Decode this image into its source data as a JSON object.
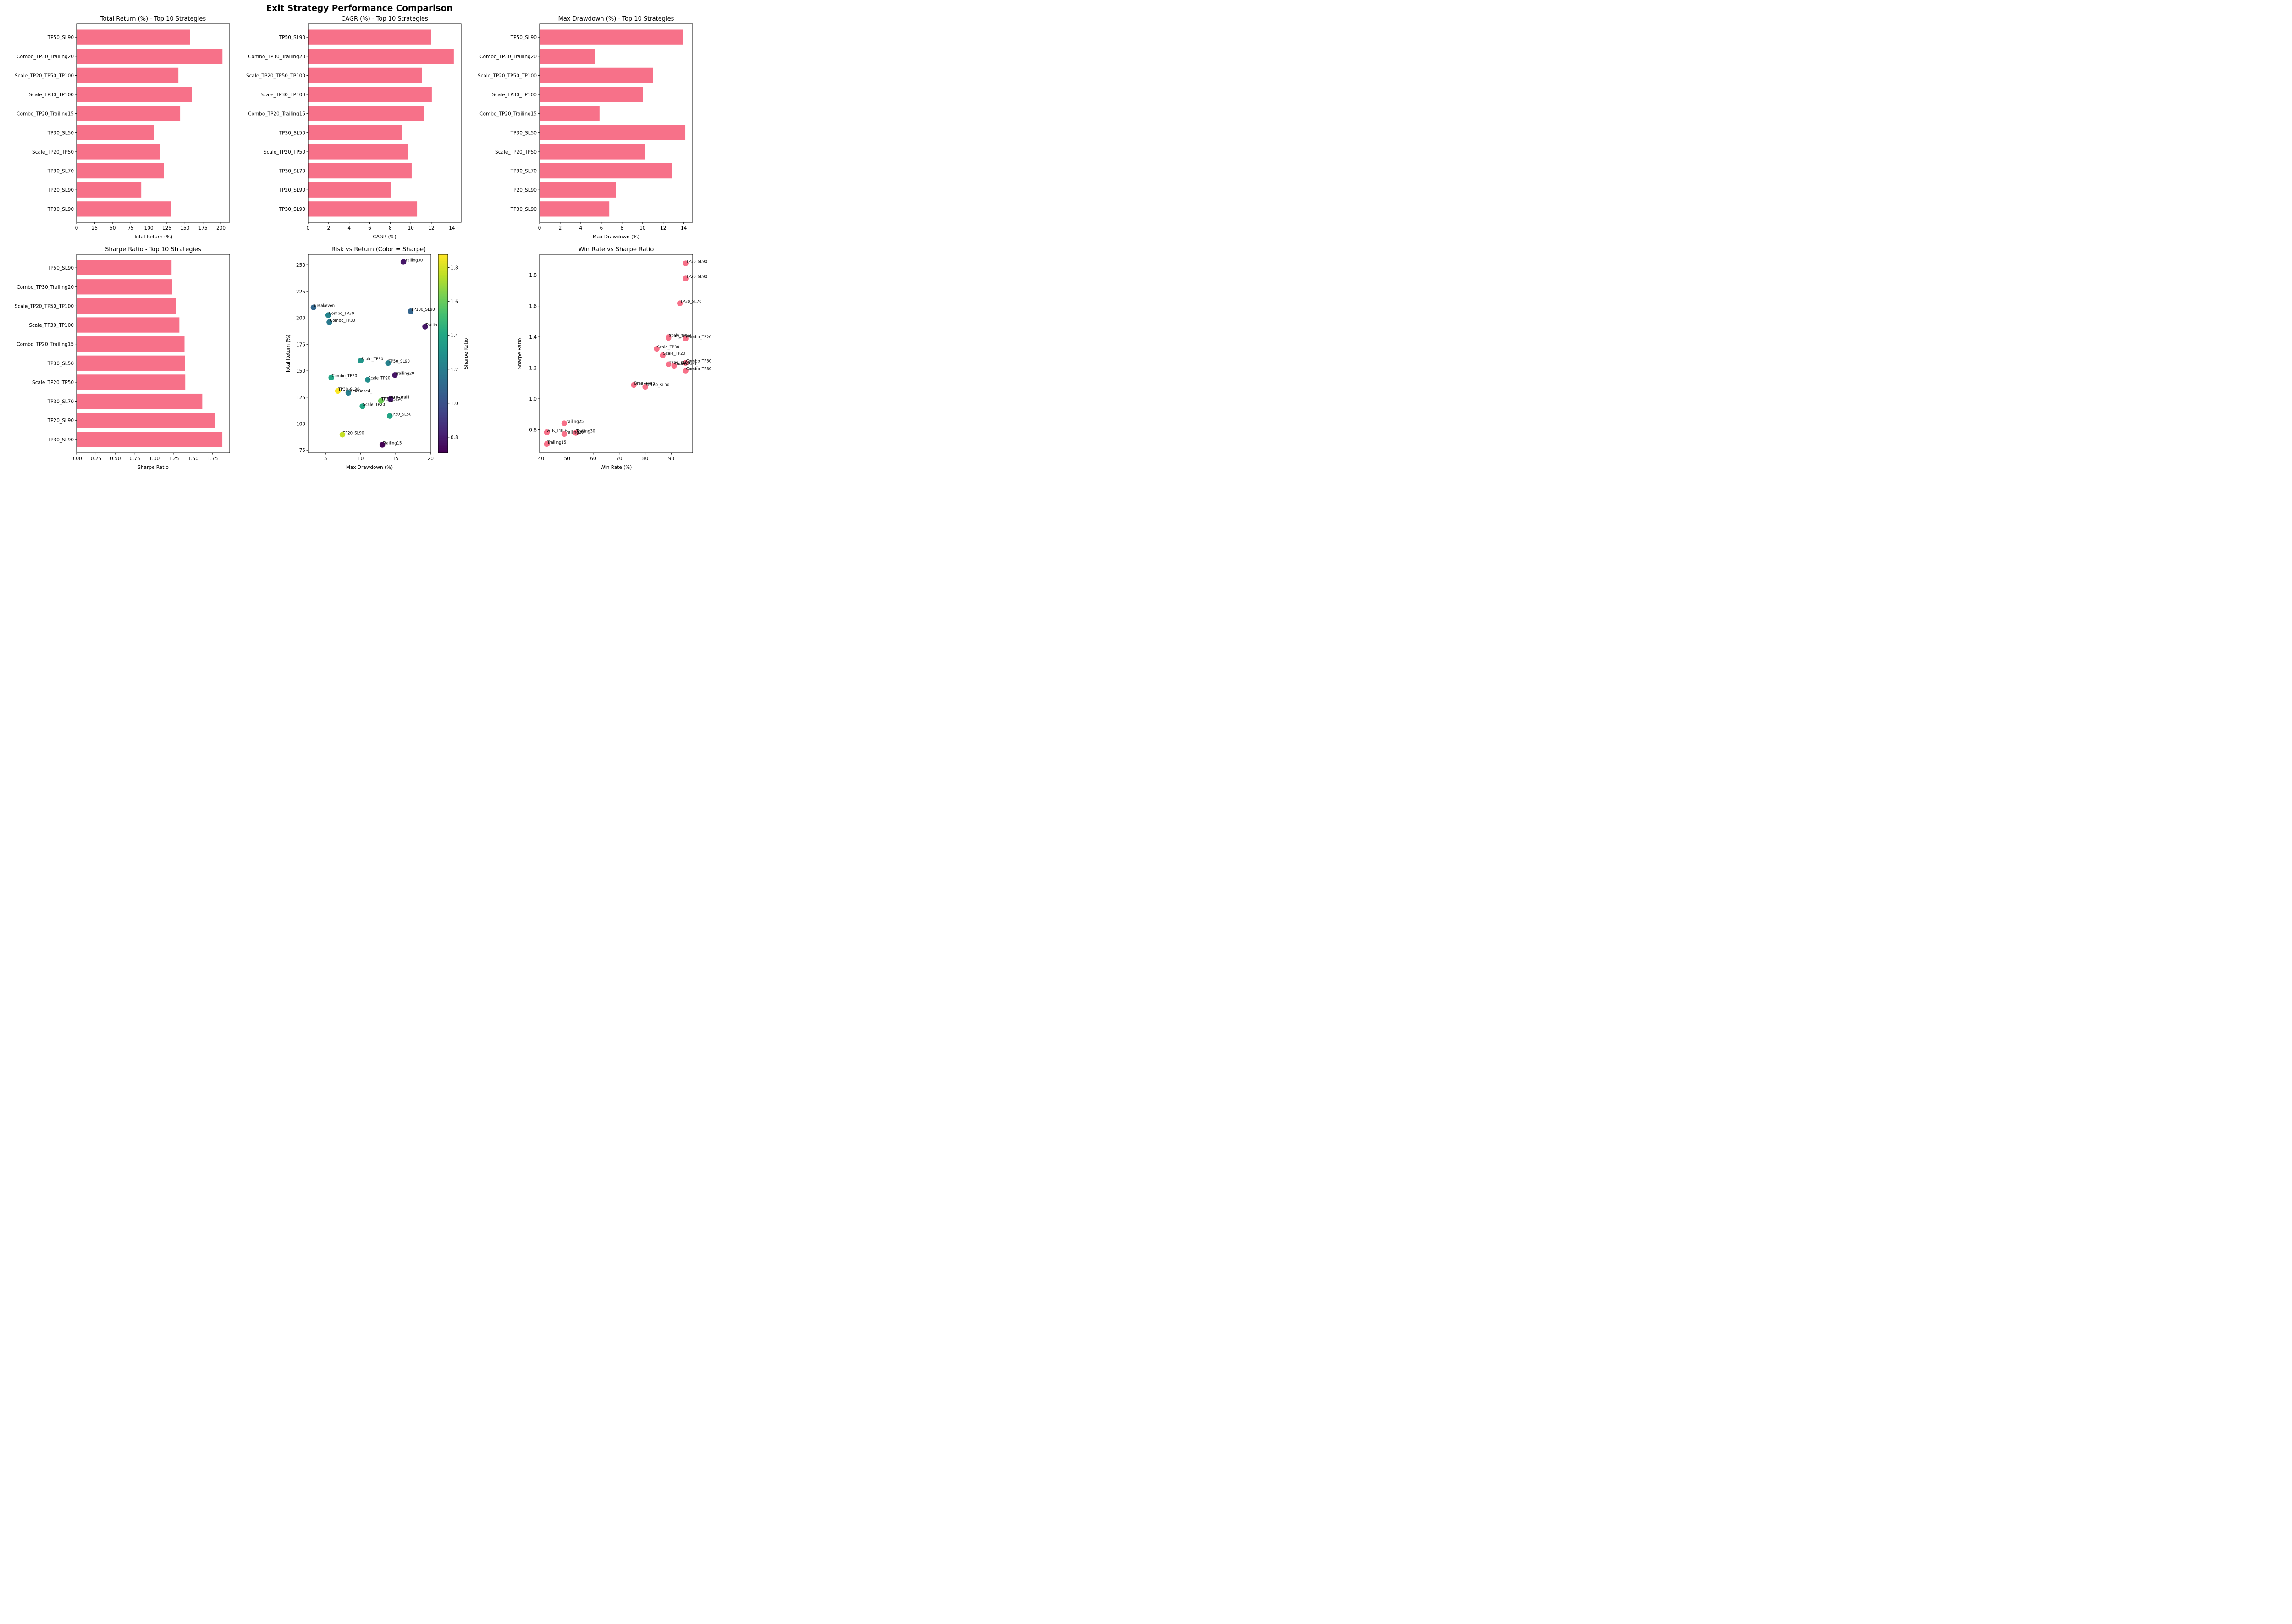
{
  "figure": {
    "title": "Exit Strategy Performance Comparison"
  },
  "colors": {
    "bar": "#f77189",
    "scatter_pink": "#f77189",
    "axis": "#000000"
  },
  "chart_data": [
    {
      "id": "total_return",
      "type": "bar",
      "orientation": "horizontal",
      "title": "Total Return (%) - Top 10 Strategies",
      "xlabel": "Total Return (%)",
      "ylabel": "",
      "categories": [
        "TP50_SL90",
        "Combo_TP30_Trailing20",
        "Scale_TP20_TP50_TP100",
        "Scale_TP30_TP100",
        "Combo_TP20_Trailing15",
        "TP30_SL50",
        "Scale_TP20_TP50",
        "TP30_SL70",
        "TP20_SL90",
        "TP30_SL90"
      ],
      "values": [
        157,
        202,
        141,
        159.5,
        143.5,
        107,
        116,
        121,
        89.6,
        131
      ],
      "xlim": [
        0,
        212
      ],
      "xticks": [
        0,
        25,
        50,
        75,
        100,
        125,
        150,
        175,
        200
      ],
      "xtick_labels": [
        "0",
        "25",
        "50",
        "75",
        "100",
        "125",
        "150",
        "175",
        "200"
      ],
      "grid": false
    },
    {
      "id": "cagr",
      "type": "bar",
      "orientation": "horizontal",
      "title": "CAGR (%) - Top 10 Strategies",
      "xlabel": "CAGR (%)",
      "ylabel": "",
      "categories": [
        "TP50_SL90",
        "Combo_TP30_Trailing20",
        "Scale_TP20_TP50_TP100",
        "Scale_TP30_TP100",
        "Combo_TP20_Trailing15",
        "TP30_SL50",
        "Scale_TP20_TP50",
        "TP30_SL70",
        "TP20_SL90",
        "TP30_SL90"
      ],
      "values": [
        11.98,
        14.18,
        11.07,
        12.04,
        11.29,
        9.18,
        9.69,
        10.08,
        8.09,
        10.62
      ],
      "xlim": [
        0,
        14.9
      ],
      "xticks": [
        0,
        2,
        4,
        6,
        8,
        10,
        12,
        14
      ],
      "xtick_labels": [
        "0",
        "2",
        "4",
        "6",
        "8",
        "10",
        "12",
        "14"
      ],
      "grid": false
    },
    {
      "id": "max_drawdown",
      "type": "bar",
      "orientation": "horizontal",
      "title": "Max Drawdown (%) - Top 10 Strategies",
      "xlabel": "Max Drawdown (%)",
      "ylabel": "",
      "categories": [
        "TP50_SL90",
        "Combo_TP30_Trailing20",
        "Scale_TP20_TP50_TP100",
        "Scale_TP30_TP100",
        "Combo_TP20_Trailing15",
        "TP30_SL50",
        "Scale_TP20_TP50",
        "TP30_SL70",
        "TP20_SL90",
        "TP30_SL90"
      ],
      "values": [
        13.94,
        5.39,
        11.0,
        10.03,
        5.82,
        14.15,
        10.26,
        12.9,
        7.42,
        6.77
      ],
      "xlim": [
        0,
        14.86
      ],
      "xticks": [
        0,
        2,
        4,
        6,
        8,
        10,
        12,
        14
      ],
      "xtick_labels": [
        "0",
        "2",
        "4",
        "6",
        "8",
        "10",
        "12",
        "14"
      ],
      "grid": false
    },
    {
      "id": "sharpe",
      "type": "bar",
      "orientation": "horizontal",
      "title": "Sharpe Ratio - Top 10 Strategies",
      "xlabel": "Sharpe Ratio",
      "ylabel": "",
      "categories": [
        "TP50_SL90",
        "Combo_TP30_Trailing20",
        "Scale_TP20_TP50_TP100",
        "Scale_TP30_TP100",
        "Combo_TP20_Trailing15",
        "TP30_SL50",
        "Scale_TP20_TP50",
        "TP30_SL70",
        "TP20_SL90",
        "TP30_SL90"
      ],
      "values": [
        1.222,
        1.231,
        1.279,
        1.323,
        1.389,
        1.392,
        1.399,
        1.618,
        1.777,
        1.876
      ],
      "xlim": [
        0,
        1.97
      ],
      "xticks": [
        0,
        0.25,
        0.5,
        0.75,
        1.0,
        1.25,
        1.5,
        1.75
      ],
      "xtick_labels": [
        "0.00",
        "0.25",
        "0.50",
        "0.75",
        "1.00",
        "1.25",
        "1.50",
        "1.75"
      ],
      "grid": false
    },
    {
      "id": "risk_vs_return",
      "type": "scatter",
      "title": "Risk vs Return (Color = Sharpe)",
      "xlabel": "Max Drawdown (%)",
      "ylabel": "Total Return (%)",
      "xlim": [
        2.49,
        20.05
      ],
      "ylim": [
        72.5,
        260
      ],
      "xticks": [
        5,
        10,
        15,
        20
      ],
      "xtick_labels": [
        "5",
        "10",
        "15",
        "20"
      ],
      "yticks": [
        75,
        100,
        125,
        150,
        175,
        200,
        225,
        250
      ],
      "ytick_labels": [
        "75",
        "100",
        "125",
        "150",
        "175",
        "200",
        "225",
        "250"
      ],
      "colormap": "viridis",
      "colorbar": {
        "label": "Sharpe Ratio",
        "range": [
          0.708,
          1.877
        ],
        "ticks": [
          0.8,
          1.0,
          1.2,
          1.4,
          1.6,
          1.8
        ],
        "tick_labels": [
          "0.8",
          "1.0",
          "1.2",
          "1.4",
          "1.6",
          "1.8"
        ]
      },
      "points": [
        {
          "label": "Trailing30",
          "x": 16.12,
          "y": 252.9,
          "c": 0.78
        },
        {
          "label": "Breakeven_",
          "x": 3.27,
          "y": 209.9,
          "c": 1.09
        },
        {
          "label": "Combo_TP30",
          "x": 5.37,
          "y": 202.6,
          "c": 1.23
        },
        {
          "label": "Combo_TP30",
          "x": 5.53,
          "y": 196.0,
          "c": 1.18
        },
        {
          "label": "TP100_SL90",
          "x": 17.16,
          "y": 206.2,
          "c": 1.08
        },
        {
          "label": "Trailin",
          "x": 19.23,
          "y": 191.8,
          "c": 0.78
        },
        {
          "label": "Scale_TP30",
          "x": 10.01,
          "y": 159.6,
          "c": 1.32
        },
        {
          "label": "TP50_SL90",
          "x": 13.93,
          "y": 157.3,
          "c": 1.22
        },
        {
          "label": "Trailing20",
          "x": 14.9,
          "y": 146.0,
          "c": 0.77
        },
        {
          "label": "Combo_TP20",
          "x": 5.81,
          "y": 143.6,
          "c": 1.39
        },
        {
          "label": "Scale_TP20",
          "x": 11.02,
          "y": 141.5,
          "c": 1.28
        },
        {
          "label": "TP30_SL90",
          "x": 6.75,
          "y": 131.0,
          "c": 1.876
        },
        {
          "label": "TimeBased_",
          "x": 8.25,
          "y": 129.3,
          "c": 1.21
        },
        {
          "label": "ATR_Traili",
          "x": 14.26,
          "y": 123.3,
          "c": 0.78
        },
        {
          "label": "TP30_SL70",
          "x": 12.91,
          "y": 121.6,
          "c": 1.618
        },
        {
          "label": "Scale_TP20",
          "x": 10.26,
          "y": 116.5,
          "c": 1.4
        },
        {
          "label": "TP30_SL50",
          "x": 14.17,
          "y": 107.3,
          "c": 1.39
        },
        {
          "label": "TP20_SL90",
          "x": 7.4,
          "y": 89.7,
          "c": 1.777
        },
        {
          "label": "Trailing15",
          "x": 13.11,
          "y": 80.1,
          "c": 0.708
        }
      ],
      "grid": false
    },
    {
      "id": "winrate_vs_sharpe",
      "type": "scatter",
      "title": "Win Rate vs Sharpe Ratio",
      "xlabel": "Win Rate (%)",
      "ylabel": "Sharpe Ratio",
      "xlim": [
        39.4,
        98.2
      ],
      "ylim": [
        0.65,
        1.934
      ],
      "xticks": [
        40,
        50,
        60,
        70,
        80,
        90
      ],
      "xtick_labels": [
        "40",
        "50",
        "60",
        "70",
        "80",
        "90"
      ],
      "yticks": [
        0.8,
        1.0,
        1.2,
        1.4,
        1.6,
        1.8
      ],
      "ytick_labels": [
        "0.8",
        "1.0",
        "1.2",
        "1.4",
        "1.6",
        "1.8"
      ],
      "points": [
        {
          "label": "TP30_SL90",
          "x": 95.5,
          "y": 1.876
        },
        {
          "label": "TP20_SL90",
          "x": 95.5,
          "y": 1.778
        },
        {
          "label": "TP30_SL70",
          "x": 93.3,
          "y": 1.618
        },
        {
          "label": "Scale_TP20",
          "x": 88.9,
          "y": 1.399
        },
        {
          "label": "TP30_SL50",
          "x": 88.9,
          "y": 1.394
        },
        {
          "label": "Combo_TP20",
          "x": 95.5,
          "y": 1.389
        },
        {
          "label": "Scale_TP30",
          "x": 84.4,
          "y": 1.323
        },
        {
          "label": "Scale_TP20",
          "x": 86.7,
          "y": 1.281
        },
        {
          "label": "TP50_SL90",
          "x": 88.9,
          "y": 1.223
        },
        {
          "label": "TimeBased_",
          "x": 91.1,
          "y": 1.214
        },
        {
          "label": "Combo_TP30",
          "x": 95.5,
          "y": 1.232
        },
        {
          "label": "Combo_TP30",
          "x": 95.5,
          "y": 1.182
        },
        {
          "label": "Breakeven_",
          "x": 75.6,
          "y": 1.089
        },
        {
          "label": "TP100_SL90",
          "x": 80.0,
          "y": 1.077
        },
        {
          "label": "Trailing25",
          "x": 48.9,
          "y": 0.841
        },
        {
          "label": "ATR_Traili",
          "x": 42.2,
          "y": 0.783
        },
        {
          "label": "Trailing20",
          "x": 48.9,
          "y": 0.772
        },
        {
          "label": "Trailing30",
          "x": 53.3,
          "y": 0.779
        },
        {
          "label": "Trailing15",
          "x": 42.2,
          "y": 0.707
        }
      ],
      "grid": false
    }
  ]
}
